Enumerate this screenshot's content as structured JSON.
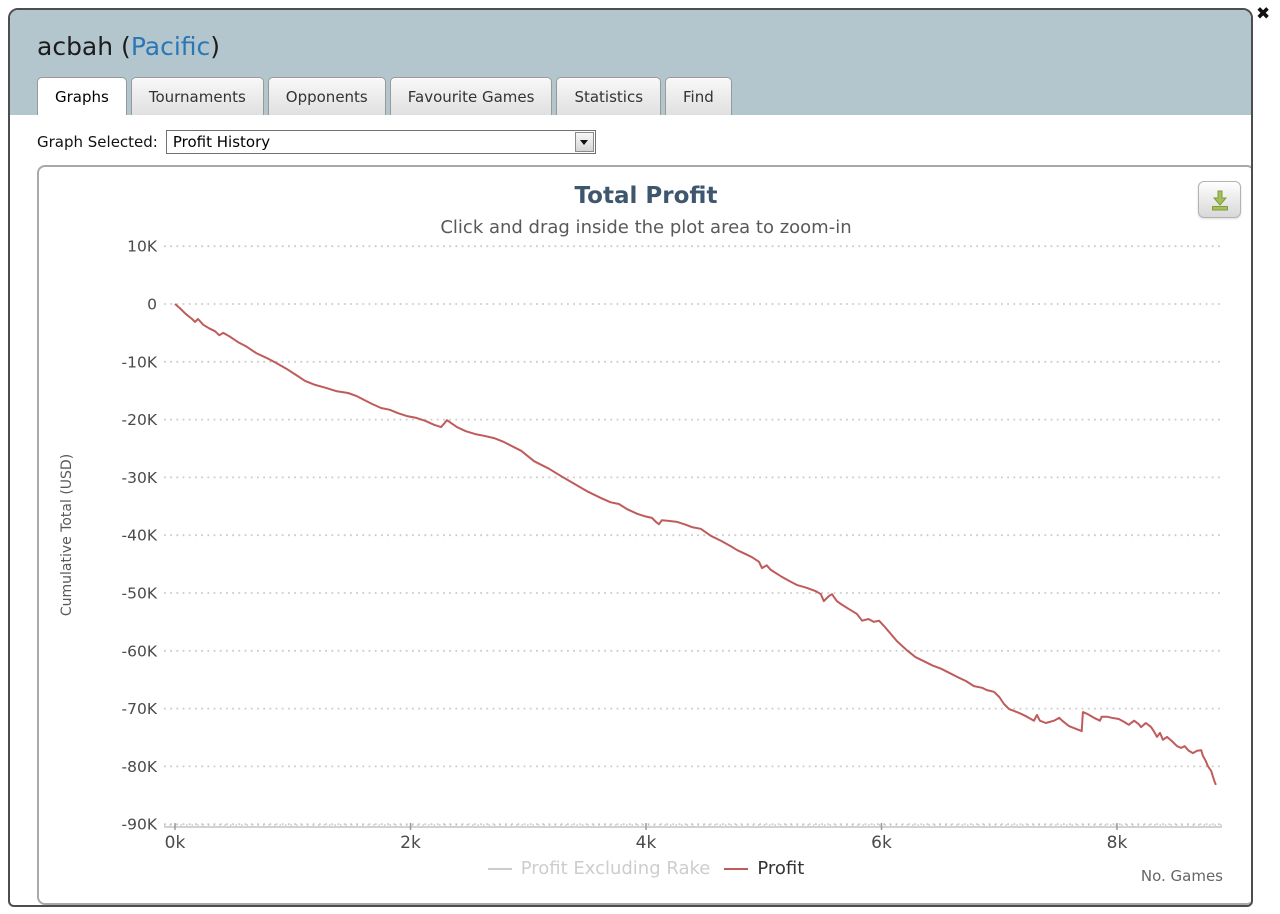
{
  "window": {
    "player": "acbah",
    "paren_open": " (",
    "site": "Pacific",
    "paren_close": ")",
    "close_glyph": "✖"
  },
  "tabs": [
    {
      "label": "Graphs",
      "active": true
    },
    {
      "label": "Tournaments",
      "active": false
    },
    {
      "label": "Opponents",
      "active": false
    },
    {
      "label": "Favourite Games",
      "active": false
    },
    {
      "label": "Statistics",
      "active": false
    },
    {
      "label": "Find",
      "active": false
    }
  ],
  "graph_selector": {
    "label": "Graph Selected:",
    "value": "Profit History"
  },
  "chart_data": {
    "type": "line",
    "title": "Total Profit",
    "subtitle": "Click and drag inside the plot area to zoom-in",
    "xlabel": "No. Games",
    "ylabel": "Cumulative Total (USD)",
    "xlim": [
      0,
      8900
    ],
    "ylim": [
      -90000,
      10000
    ],
    "grid": "horizontal-dotted",
    "legend_position": "bottom-center",
    "x_ticks": [
      {
        "value": 0,
        "label": "0k"
      },
      {
        "value": 2000,
        "label": "2k"
      },
      {
        "value": 4000,
        "label": "4k"
      },
      {
        "value": 6000,
        "label": "6k"
      },
      {
        "value": 8000,
        "label": "8k"
      }
    ],
    "y_ticks": [
      {
        "value": 10000,
        "label": "10K"
      },
      {
        "value": 0,
        "label": "0"
      },
      {
        "value": -10000,
        "label": "-10K"
      },
      {
        "value": -20000,
        "label": "-20K"
      },
      {
        "value": -30000,
        "label": "-30K"
      },
      {
        "value": -40000,
        "label": "-40K"
      },
      {
        "value": -50000,
        "label": "-50K"
      },
      {
        "value": -60000,
        "label": "-60K"
      },
      {
        "value": -70000,
        "label": "-70K"
      },
      {
        "value": -80000,
        "label": "-80K"
      },
      {
        "value": -90000,
        "label": "-90K"
      }
    ],
    "series": [
      {
        "name": "Profit Excluding Rake",
        "color": "#cccccc",
        "visible": false,
        "points": []
      },
      {
        "name": "Profit",
        "color": "#bf5b5b",
        "visible": true,
        "points": [
          [
            0,
            0
          ],
          [
            40,
            -700
          ],
          [
            90,
            -1700
          ],
          [
            145,
            -2600
          ],
          [
            170,
            -3100
          ],
          [
            195,
            -2600
          ],
          [
            240,
            -3600
          ],
          [
            290,
            -4200
          ],
          [
            340,
            -4700
          ],
          [
            375,
            -5400
          ],
          [
            410,
            -5000
          ],
          [
            470,
            -5700
          ],
          [
            535,
            -6600
          ],
          [
            610,
            -7400
          ],
          [
            690,
            -8500
          ],
          [
            775,
            -9300
          ],
          [
            860,
            -10200
          ],
          [
            945,
            -11200
          ],
          [
            1030,
            -12300
          ],
          [
            1105,
            -13300
          ],
          [
            1190,
            -14000
          ],
          [
            1280,
            -14500
          ],
          [
            1375,
            -15100
          ],
          [
            1470,
            -15400
          ],
          [
            1540,
            -15900
          ],
          [
            1605,
            -16600
          ],
          [
            1675,
            -17300
          ],
          [
            1750,
            -18000
          ],
          [
            1825,
            -18300
          ],
          [
            1895,
            -18900
          ],
          [
            1970,
            -19400
          ],
          [
            2050,
            -19700
          ],
          [
            2125,
            -20200
          ],
          [
            2200,
            -20900
          ],
          [
            2260,
            -21300
          ],
          [
            2310,
            -20100
          ],
          [
            2345,
            -20600
          ],
          [
            2395,
            -21300
          ],
          [
            2470,
            -22000
          ],
          [
            2550,
            -22500
          ],
          [
            2625,
            -22800
          ],
          [
            2710,
            -23200
          ],
          [
            2795,
            -23900
          ],
          [
            2940,
            -25400
          ],
          [
            3050,
            -27200
          ],
          [
            3175,
            -28500
          ],
          [
            3280,
            -29800
          ],
          [
            3390,
            -31100
          ],
          [
            3500,
            -32400
          ],
          [
            3620,
            -33600
          ],
          [
            3700,
            -34300
          ],
          [
            3770,
            -34600
          ],
          [
            3840,
            -35500
          ],
          [
            3925,
            -36300
          ],
          [
            3985,
            -36700
          ],
          [
            4050,
            -37000
          ],
          [
            4085,
            -37700
          ],
          [
            4110,
            -38100
          ],
          [
            4135,
            -37400
          ],
          [
            4180,
            -37500
          ],
          [
            4265,
            -37700
          ],
          [
            4340,
            -38200
          ],
          [
            4390,
            -38600
          ],
          [
            4465,
            -38900
          ],
          [
            4550,
            -40100
          ],
          [
            4640,
            -41000
          ],
          [
            4720,
            -41900
          ],
          [
            4775,
            -42600
          ],
          [
            4850,
            -43300
          ],
          [
            4900,
            -43800
          ],
          [
            4960,
            -44600
          ],
          [
            4985,
            -45700
          ],
          [
            5025,
            -45200
          ],
          [
            5060,
            -46000
          ],
          [
            5145,
            -47100
          ],
          [
            5215,
            -47900
          ],
          [
            5280,
            -48600
          ],
          [
            5365,
            -49100
          ],
          [
            5445,
            -49700
          ],
          [
            5485,
            -50200
          ],
          [
            5510,
            -51400
          ],
          [
            5555,
            -50500
          ],
          [
            5580,
            -50200
          ],
          [
            5620,
            -51400
          ],
          [
            5655,
            -51900
          ],
          [
            5725,
            -52800
          ],
          [
            5790,
            -53600
          ],
          [
            5835,
            -54800
          ],
          [
            5890,
            -54500
          ],
          [
            5935,
            -55000
          ],
          [
            5980,
            -54800
          ],
          [
            6020,
            -55700
          ],
          [
            6080,
            -57100
          ],
          [
            6130,
            -58300
          ],
          [
            6215,
            -59900
          ],
          [
            6290,
            -61100
          ],
          [
            6360,
            -61800
          ],
          [
            6430,
            -62500
          ],
          [
            6505,
            -63100
          ],
          [
            6575,
            -63800
          ],
          [
            6640,
            -64500
          ],
          [
            6715,
            -65200
          ],
          [
            6785,
            -66100
          ],
          [
            6855,
            -66400
          ],
          [
            6895,
            -66800
          ],
          [
            6955,
            -67100
          ],
          [
            7000,
            -68000
          ],
          [
            7040,
            -69200
          ],
          [
            7085,
            -70100
          ],
          [
            7125,
            -70400
          ],
          [
            7185,
            -70900
          ],
          [
            7235,
            -71400
          ],
          [
            7295,
            -72100
          ],
          [
            7320,
            -71100
          ],
          [
            7345,
            -72100
          ],
          [
            7395,
            -72500
          ],
          [
            7465,
            -72100
          ],
          [
            7510,
            -71600
          ],
          [
            7535,
            -72100
          ],
          [
            7590,
            -73000
          ],
          [
            7650,
            -73500
          ],
          [
            7700,
            -73900
          ],
          [
            7710,
            -70600
          ],
          [
            7745,
            -70900
          ],
          [
            7805,
            -71600
          ],
          [
            7855,
            -72100
          ],
          [
            7870,
            -71400
          ],
          [
            7915,
            -71400
          ],
          [
            7955,
            -71600
          ],
          [
            8015,
            -71800
          ],
          [
            8060,
            -72300
          ],
          [
            8100,
            -72800
          ],
          [
            8145,
            -72100
          ],
          [
            8185,
            -72700
          ],
          [
            8205,
            -73200
          ],
          [
            8245,
            -72500
          ],
          [
            8290,
            -73200
          ],
          [
            8315,
            -74000
          ],
          [
            8340,
            -74900
          ],
          [
            8365,
            -74200
          ],
          [
            8390,
            -75400
          ],
          [
            8425,
            -74900
          ],
          [
            8465,
            -75600
          ],
          [
            8510,
            -76500
          ],
          [
            8545,
            -76800
          ],
          [
            8575,
            -76500
          ],
          [
            8610,
            -77300
          ],
          [
            8645,
            -77700
          ],
          [
            8680,
            -77300
          ],
          [
            8715,
            -77200
          ],
          [
            8730,
            -78200
          ],
          [
            8755,
            -79100
          ],
          [
            8770,
            -79900
          ],
          [
            8800,
            -80800
          ],
          [
            8815,
            -81800
          ],
          [
            8830,
            -82700
          ],
          [
            8840,
            -83200
          ]
        ]
      }
    ]
  },
  "colors": {
    "header_bg": "#b3c6cd",
    "title_text": "#3e576f",
    "profit_line": "#bf5b5b",
    "disabled_series": "#cccccc",
    "site_link": "#2b77b6"
  }
}
